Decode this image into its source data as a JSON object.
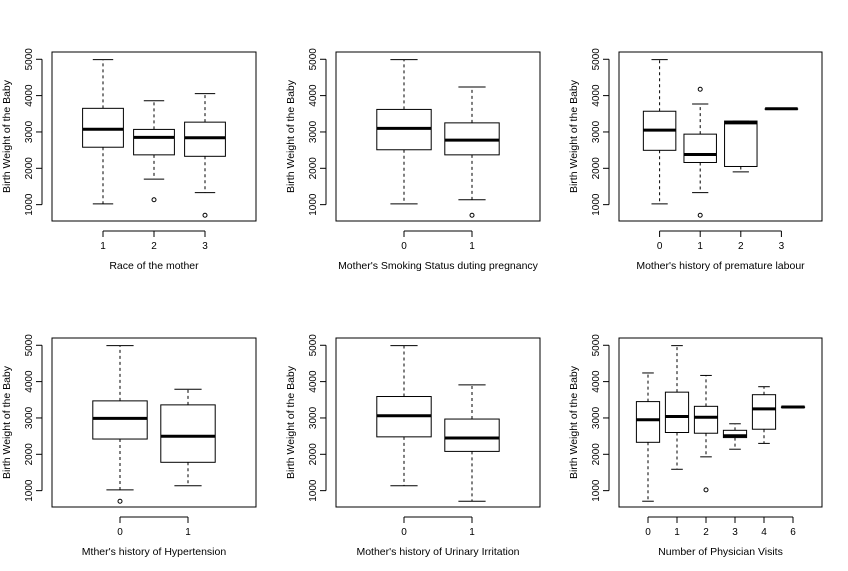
{
  "chart_data": [
    {
      "type": "boxplot",
      "xlabel": "Race of the mother",
      "ylabel": "Birth Weight of the Baby",
      "ylim": [
        550,
        5200
      ],
      "yticks": [
        1000,
        2000,
        3000,
        4000,
        5000
      ],
      "categories": [
        "1",
        "2",
        "3"
      ],
      "boxes": [
        {
          "min": 1021,
          "q1": 2580,
          "median": 3076,
          "q3": 3650,
          "max": 4990,
          "outliers": []
        },
        {
          "min": 1701,
          "q1": 2370,
          "median": 2850,
          "q3": 3070,
          "max": 3860,
          "outliers": [
            1135
          ]
        },
        {
          "min": 1330,
          "q1": 2330,
          "median": 2840,
          "q3": 3270,
          "max": 4054,
          "outliers": [
            709
          ]
        }
      ]
    },
    {
      "type": "boxplot",
      "xlabel": "Mother's Smoking Status duting pregnancy",
      "ylabel": "Birth Weight of the Baby",
      "ylim": [
        550,
        5200
      ],
      "yticks": [
        1000,
        2000,
        3000,
        4000,
        5000
      ],
      "categories": [
        "0",
        "1"
      ],
      "boxes": [
        {
          "min": 1021,
          "q1": 2510,
          "median": 3100,
          "q3": 3620,
          "max": 4990,
          "outliers": []
        },
        {
          "min": 1135,
          "q1": 2370,
          "median": 2775,
          "q3": 3250,
          "max": 4238,
          "outliers": [
            709
          ]
        }
      ]
    },
    {
      "type": "boxplot",
      "xlabel": "Mother's history of premature labour",
      "ylabel": "Birth Weight of the Baby",
      "ylim": [
        550,
        5200
      ],
      "yticks": [
        1000,
        2000,
        3000,
        4000,
        5000
      ],
      "categories": [
        "0",
        "1",
        "2",
        "3"
      ],
      "boxes": [
        {
          "min": 1021,
          "q1": 2495,
          "median": 3050,
          "q3": 3570,
          "max": 4990,
          "outliers": []
        },
        {
          "min": 1330,
          "q1": 2160,
          "median": 2380,
          "q3": 2940,
          "max": 3770,
          "outliers": [
            709,
            4174
          ]
        },
        {
          "min": 1900,
          "q1": 2050,
          "median": 3250,
          "q3": 3300,
          "max": 3300,
          "outliers": []
        },
        {
          "min": 3637,
          "q1": 3637,
          "median": 3637,
          "q3": 3637,
          "max": 3637,
          "outliers": []
        }
      ]
    },
    {
      "type": "boxplot",
      "xlabel": "Mther's history of Hypertension",
      "ylabel": "Birth Weight of the Baby",
      "ylim": [
        550,
        5200
      ],
      "yticks": [
        1000,
        2000,
        3000,
        4000,
        5000
      ],
      "categories": [
        "0",
        "1"
      ],
      "boxes": [
        {
          "min": 1021,
          "q1": 2420,
          "median": 2990,
          "q3": 3470,
          "max": 4990,
          "outliers": [
            709
          ]
        },
        {
          "min": 1135,
          "q1": 1780,
          "median": 2495,
          "q3": 3360,
          "max": 3790,
          "outliers": []
        }
      ]
    },
    {
      "type": "boxplot",
      "xlabel": "Mother's history of Urinary Irritation",
      "ylabel": "Birth Weight of the Baby",
      "ylim": [
        550,
        5200
      ],
      "yticks": [
        1000,
        2000,
        3000,
        4000,
        5000
      ],
      "categories": [
        "0",
        "1"
      ],
      "boxes": [
        {
          "min": 1135,
          "q1": 2480,
          "median": 3060,
          "q3": 3590,
          "max": 4990,
          "outliers": []
        },
        {
          "min": 709,
          "q1": 2080,
          "median": 2450,
          "q3": 2970,
          "max": 3910,
          "outliers": []
        }
      ]
    },
    {
      "type": "boxplot",
      "xlabel": "Number of Physician Visits",
      "ylabel": "Birth Weight of the Baby",
      "ylim": [
        550,
        5200
      ],
      "yticks": [
        1000,
        2000,
        3000,
        4000,
        5000
      ],
      "categories": [
        "0",
        "1",
        "2",
        "3",
        "4",
        "6"
      ],
      "boxes": [
        {
          "min": 709,
          "q1": 2330,
          "median": 2950,
          "q3": 3450,
          "max": 4238,
          "outliers": []
        },
        {
          "min": 1588,
          "q1": 2600,
          "median": 3040,
          "q3": 3710,
          "max": 4990,
          "outliers": []
        },
        {
          "min": 1930,
          "q1": 2580,
          "median": 3020,
          "q3": 3320,
          "max": 4170,
          "outliers": [
            1021
          ]
        },
        {
          "min": 2140,
          "q1": 2460,
          "median": 2510,
          "q3": 2660,
          "max": 2840,
          "outliers": []
        },
        {
          "min": 2300,
          "q1": 2690,
          "median": 3250,
          "q3": 3640,
          "max": 3860,
          "outliers": []
        },
        {
          "min": 3303,
          "q1": 3303,
          "median": 3303,
          "q3": 3303,
          "max": 3303,
          "outliers": []
        }
      ]
    }
  ]
}
